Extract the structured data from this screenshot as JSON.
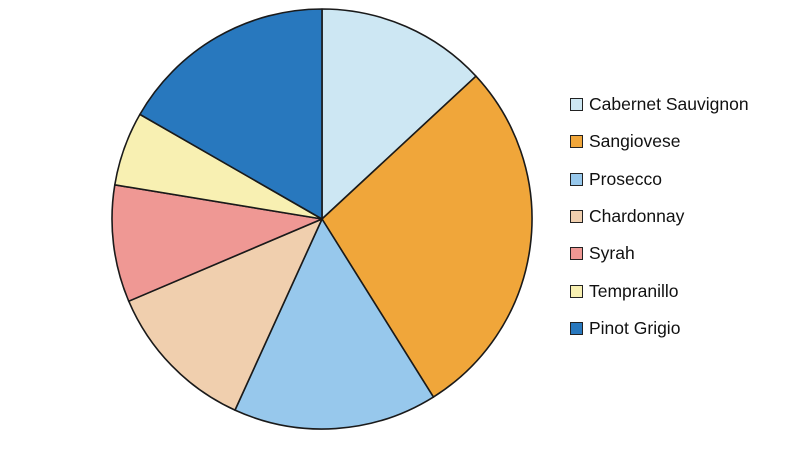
{
  "chart_data": {
    "type": "pie",
    "title": "",
    "start_angle": "12 o'clock",
    "direction": "clockwise",
    "legend_placement": "right",
    "slices": [
      {
        "label": "Cabernet Sauvignon",
        "value": 13.1,
        "color": "#cde7f3"
      },
      {
        "label": "Sangiovese",
        "value": 28.0,
        "color": "#f0a63a"
      },
      {
        "label": "Prosecco",
        "value": 15.7,
        "color": "#97c8ec"
      },
      {
        "label": "Chardonnay",
        "value": 11.8,
        "color": "#f0cfae"
      },
      {
        "label": "Syrah",
        "value": 9.0,
        "color": "#ef9894"
      },
      {
        "label": "Tempranillo",
        "value": 5.7,
        "color": "#f8f0b2"
      },
      {
        "label": "Pinot Grigio",
        "value": 16.7,
        "color": "#2878be"
      }
    ]
  }
}
